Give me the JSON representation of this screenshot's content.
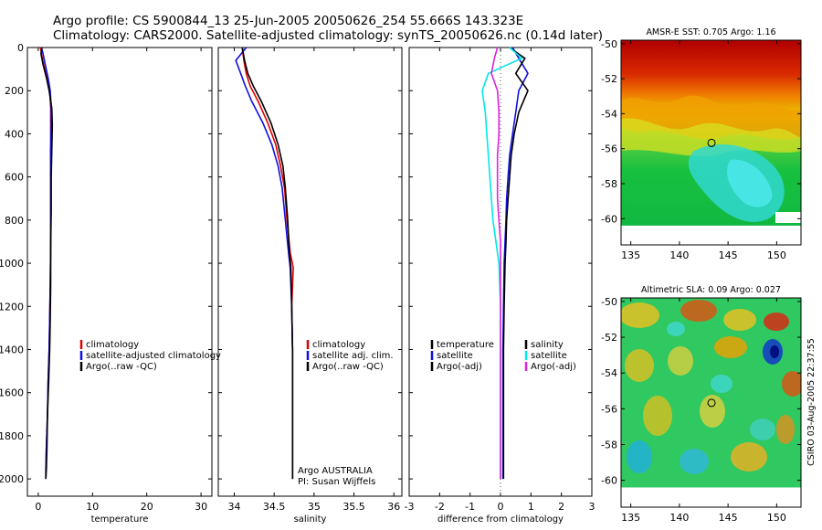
{
  "header": {
    "line1": "Argo profile: CS 5900844_13 25-Jun-2005 20050626_254 55.666S 143.323E",
    "line2": "Climatology: CARS2000. Satellite-adjusted climatology: synTS_20050626.nc (0.14d later)"
  },
  "colors": {
    "climatology": "#e00000",
    "satellite": "#1010e0",
    "argo": "#000000",
    "temperature": "#000000",
    "salinity_sat": "#00e8e8",
    "salinity_argo": "#e020e0"
  },
  "chart_data": [
    {
      "type": "line",
      "name": "temperature-profile",
      "xlabel": "temperature",
      "ylabel": "",
      "xlim": [
        -2,
        32
      ],
      "ylim": [
        2080,
        0
      ],
      "xticks": [
        0,
        10,
        20,
        30
      ],
      "yticks": [
        0,
        200,
        400,
        600,
        800,
        1000,
        1200,
        1400,
        1600,
        1800,
        2000
      ],
      "legend": [
        "climatology",
        "satellite-adjusted climatology",
        "Argo(..raw -QC)"
      ],
      "series": [
        {
          "name": "climatology",
          "color_key": "climatology",
          "x": [
            0.4,
            0.6,
            1.0,
            1.6,
            2.1,
            2.3,
            2.3,
            2.3,
            2.3,
            2.3,
            2.3,
            2.2,
            2.1,
            2.0,
            1.8,
            1.7,
            1.5,
            1.4,
            1.4
          ],
          "y": [
            0,
            30,
            80,
            140,
            200,
            280,
            360,
            480,
            600,
            760,
            920,
            1100,
            1260,
            1400,
            1560,
            1700,
            1850,
            1950,
            2000
          ]
        },
        {
          "name": "satellite-adjusted climatology",
          "color_key": "satellite",
          "x": [
            0.6,
            0.9,
            1.3,
            1.8,
            2.2,
            2.4,
            2.4,
            2.3,
            2.3,
            2.3,
            2.3,
            2.2,
            2.1,
            2.0,
            1.8,
            1.7,
            1.5,
            1.4,
            1.4
          ],
          "y": [
            0,
            30,
            80,
            140,
            200,
            280,
            360,
            480,
            600,
            760,
            920,
            1100,
            1260,
            1400,
            1560,
            1700,
            1850,
            1950,
            2000
          ]
        },
        {
          "name": "Argo(..raw -QC)",
          "color_key": "argo",
          "x": [
            0.7,
            0.5,
            0.9,
            1.5,
            2.0,
            2.5,
            2.6,
            2.5,
            2.4,
            2.4,
            2.3,
            2.3,
            2.2,
            2.1,
            1.9,
            1.7,
            1.6,
            1.5,
            1.4
          ],
          "y": [
            0,
            30,
            80,
            140,
            200,
            280,
            360,
            480,
            600,
            760,
            920,
            1100,
            1260,
            1400,
            1560,
            1700,
            1850,
            1950,
            2000
          ]
        }
      ]
    },
    {
      "type": "line",
      "name": "salinity-profile",
      "xlabel": "salinity",
      "xlim": [
        33.8,
        36.1
      ],
      "ylim": [
        2080,
        0
      ],
      "xticks": [
        34,
        34.5,
        35,
        35.5,
        36
      ],
      "legend": [
        "climatology",
        "satellite adj. clim.",
        "Argo(..raw -QC)"
      ],
      "annotation": [
        "Argo AUSTRALIA",
        "PI: Susan Wijffels"
      ],
      "series": [
        {
          "name": "climatology",
          "color_key": "climatology",
          "x": [
            34.1,
            34.12,
            34.15,
            34.2,
            34.3,
            34.42,
            34.52,
            34.58,
            34.63,
            34.66,
            34.7,
            34.74,
            34.72,
            34.73,
            34.73,
            34.73,
            34.73
          ],
          "y": [
            0,
            60,
            120,
            180,
            250,
            350,
            450,
            550,
            650,
            800,
            950,
            1020,
            1200,
            1400,
            1600,
            1800,
            2000
          ]
        },
        {
          "name": "satellite adj. clim.",
          "color_key": "satellite",
          "x": [
            34.15,
            34.02,
            34.08,
            34.14,
            34.22,
            34.36,
            34.47,
            34.55,
            34.6,
            34.64,
            34.68,
            34.7,
            34.72,
            34.73,
            34.73,
            34.73,
            34.73
          ],
          "y": [
            0,
            60,
            120,
            180,
            250,
            350,
            450,
            550,
            650,
            800,
            950,
            1020,
            1200,
            1400,
            1600,
            1800,
            2000
          ]
        },
        {
          "name": "Argo(..raw -QC)",
          "color_key": "argo",
          "x": [
            34.1,
            34.13,
            34.17,
            34.24,
            34.34,
            34.46,
            34.55,
            34.61,
            34.64,
            34.67,
            34.69,
            34.71,
            34.72,
            34.73,
            34.73,
            34.73,
            34.73
          ],
          "y": [
            0,
            60,
            120,
            180,
            250,
            350,
            450,
            550,
            650,
            800,
            950,
            1020,
            1200,
            1400,
            1600,
            1800,
            2000
          ]
        }
      ]
    },
    {
      "type": "line",
      "name": "difference-profile",
      "xlabel": "difference from climatology",
      "xlim": [
        -3,
        3
      ],
      "ylim": [
        2080,
        0
      ],
      "xticks": [
        -3,
        -2,
        -1,
        0,
        1,
        2,
        3
      ],
      "legend_temperature": [
        "temperature",
        "satellite",
        "Argo(-adj)"
      ],
      "legend_salinity": [
        "salinity",
        "satellite",
        "Argo(-adj)"
      ],
      "series": [
        {
          "name": "temperature satellite",
          "color_key": "satellite",
          "x": [
            0.4,
            0.6,
            0.9,
            0.6,
            0.5,
            0.4,
            0.3,
            0.25,
            0.2,
            0.18,
            0.15,
            0.12,
            0.1,
            0.08,
            0.08,
            0.08,
            0.08
          ],
          "y": [
            0,
            50,
            120,
            200,
            300,
            400,
            500,
            600,
            700,
            800,
            900,
            1000,
            1200,
            1400,
            1600,
            1800,
            2000
          ]
        },
        {
          "name": "temperature Argo(-adj)",
          "color_key": "argo",
          "x": [
            0.3,
            0.8,
            0.5,
            0.9,
            0.6,
            0.45,
            0.35,
            0.3,
            0.25,
            0.2,
            0.18,
            0.15,
            0.12,
            0.1,
            0.1,
            0.1,
            0.1
          ],
          "y": [
            0,
            50,
            120,
            200,
            300,
            400,
            500,
            600,
            700,
            800,
            900,
            1000,
            1200,
            1400,
            1600,
            1800,
            2000
          ]
        },
        {
          "name": "salinity satellite",
          "color_key": "salinity_sat",
          "x": [
            0.3,
            0.7,
            -0.4,
            -0.6,
            -0.5,
            -0.45,
            -0.4,
            -0.35,
            -0.3,
            -0.25,
            -0.15,
            -0.05,
            0.0,
            0.0,
            0.0,
            0.0,
            0.0
          ],
          "y": [
            0,
            50,
            120,
            200,
            300,
            400,
            500,
            600,
            700,
            800,
            900,
            1000,
            1200,
            1400,
            1600,
            1800,
            2000
          ]
        },
        {
          "name": "salinity Argo(-adj)",
          "color_key": "salinity_argo",
          "x": [
            -0.1,
            -0.2,
            -0.3,
            -0.1,
            -0.05,
            -0.05,
            -0.1,
            -0.1,
            -0.1,
            -0.05,
            0.0,
            0.0,
            0.0,
            0.0,
            0.0,
            0.0,
            0.0
          ],
          "y": [
            0,
            50,
            120,
            200,
            300,
            400,
            500,
            600,
            700,
            800,
            900,
            1000,
            1200,
            1400,
            1600,
            1800,
            2000
          ]
        }
      ]
    },
    {
      "type": "heatmap",
      "name": "sst-map",
      "title": "AMSR-E SST: 0.705 Argo: 1.16",
      "xlim": [
        134,
        152.5
      ],
      "ylim": [
        -61.5,
        -49.8
      ],
      "xticks": [
        135,
        140,
        145,
        150
      ],
      "yticks": [
        -50,
        -52,
        -54,
        -56,
        -58,
        -60
      ],
      "marker": {
        "lon": 143.3,
        "lat": -55.67
      }
    },
    {
      "type": "heatmap",
      "name": "sla-map",
      "title": "Altimetric SLA: 0.09 Argo: 0.027",
      "xlim": [
        134,
        152.5
      ],
      "ylim": [
        -61.5,
        -49.8
      ],
      "xticks": [
        135,
        140,
        145,
        150
      ],
      "yticks": [
        -50,
        -52,
        -54,
        -56,
        -58,
        -60
      ],
      "marker": {
        "lon": 143.3,
        "lat": -55.67
      }
    }
  ],
  "side_stamp": "CSIRO 03-Aug-2005 22:37:55"
}
